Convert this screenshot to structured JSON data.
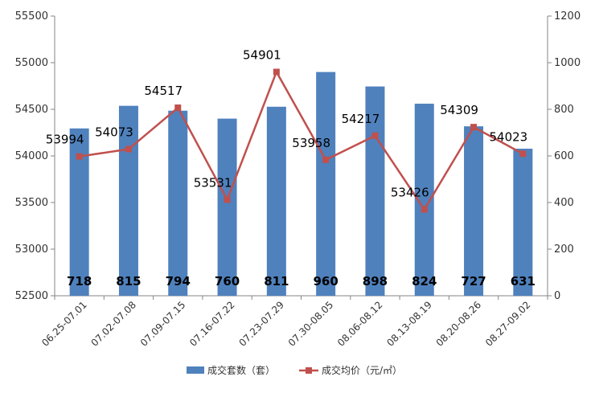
{
  "chart_data": {
    "type": "bar",
    "categories": [
      "06.25-07.01",
      "07.02-07.08",
      "07.09-07.15",
      "07.16-07.22",
      "07.23-07.29",
      "07.30-08.05",
      "08.06-08.12",
      "08.13-08.19",
      "08.20-08.26",
      "08.27-09.02"
    ],
    "series": [
      {
        "name": "成交套数（套）",
        "type": "bar",
        "axis": "right",
        "color": "#4F81BD",
        "values": [
          718,
          815,
          794,
          760,
          811,
          960,
          898,
          824,
          727,
          631
        ]
      },
      {
        "name": "成交均价（元/㎡）",
        "type": "line",
        "axis": "left",
        "color": "#C0504D",
        "values": [
          53994,
          54073,
          54517,
          53531,
          54901,
          53958,
          54217,
          53426,
          54309,
          54023
        ]
      }
    ],
    "y_left": {
      "min": 52500,
      "max": 55500,
      "step": 500,
      "ticks": [
        "52500",
        "53000",
        "53500",
        "54000",
        "54500",
        "55000",
        "55500"
      ]
    },
    "y_right": {
      "min": 0,
      "max": 1200,
      "step": 200,
      "ticks": [
        "0",
        "200",
        "400",
        "600",
        "800",
        "1000",
        "1200"
      ]
    },
    "legend_position": "bottom",
    "grid": false,
    "title": "",
    "xlabel": "",
    "ylabel": ""
  }
}
